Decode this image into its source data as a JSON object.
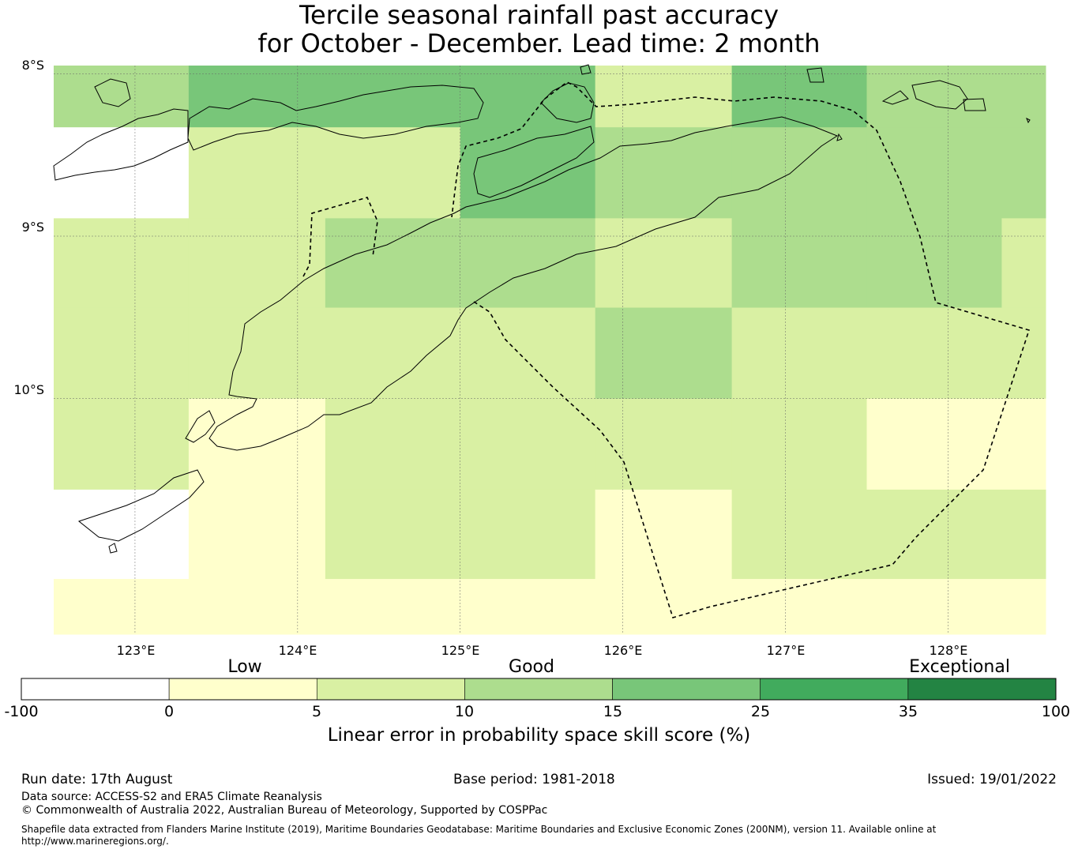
{
  "title": {
    "line1": "Tercile seasonal rainfall past accuracy",
    "line2": "for October - December. Lead time: 2 month"
  },
  "map": {
    "lat_labels": [
      "8°S",
      "9°S",
      "10°S"
    ],
    "lon_labels": [
      "123°E",
      "124°E",
      "125°E",
      "126°E",
      "127°E",
      "128°E"
    ],
    "lon_values": [
      123,
      124,
      125,
      126,
      127,
      128
    ],
    "lat_values": [
      -8,
      -9,
      -10
    ],
    "lon_range": [
      122.5,
      128.6
    ],
    "lat_range": [
      -7.95,
      -11.45
    ],
    "grid_lon_edges": [
      122.5,
      123.33,
      124.17,
      125.0,
      125.83,
      126.67,
      127.5,
      128.33,
      128.6
    ],
    "grid_lat_edges": [
      -7.95,
      -8.33,
      -8.89,
      -9.44,
      -10.0,
      -10.56,
      -11.11,
      -11.45
    ],
    "cells": [
      [
        2,
        3,
        3,
        3,
        1,
        3,
        2,
        2
      ],
      [
        0,
        1,
        1,
        3,
        2,
        2,
        2,
        2
      ],
      [
        1,
        1,
        2,
        2,
        1,
        2,
        2,
        1
      ],
      [
        1,
        1,
        1,
        1,
        2,
        1,
        1,
        1
      ],
      [
        1,
        0,
        1,
        1,
        1,
        1,
        0,
        0
      ],
      [
        0,
        0,
        1,
        1,
        0,
        1,
        1,
        1
      ],
      [
        0,
        0,
        0,
        0,
        0,
        0,
        0,
        0
      ]
    ],
    "white_cells": [
      [
        1,
        0
      ],
      [
        5,
        0
      ]
    ],
    "cell_colors": [
      "#ffffcc",
      "#d9f0a3",
      "#addd8e",
      "#78c679"
    ]
  },
  "legend": {
    "categories": [
      "Low",
      "Good",
      "Exceptional"
    ],
    "ticks": [
      "-100",
      "0",
      "5",
      "10",
      "15",
      "25",
      "35",
      "100"
    ],
    "colors": [
      "#ffffff",
      "#ffffcc",
      "#d9f0a3",
      "#addd8e",
      "#78c679",
      "#41ab5d",
      "#238443"
    ],
    "title": "Linear error in probability space skill score (%)"
  },
  "footer": {
    "run_date": "Run date: 17th August",
    "base_period": "Base period: 1981-2018",
    "issued": "Issued: 19/01/2022",
    "data_source": "Data source: ACCESS-S2 and ERA5 Climate Reanalysis",
    "copyright": "© Commonwealth of Australia 2022, Australian Bureau of Meteorology, Supported by COSPPac",
    "shapefile_line1": "Shapefile data extracted from Flanders Marine Institute (2019), Maritime Boundaries Geodatabase: Maritime Boundaries and Exclusive Economic Zones (200NM), version 11. Available online at",
    "shapefile_line2": "http://www.marineregions.org/."
  }
}
